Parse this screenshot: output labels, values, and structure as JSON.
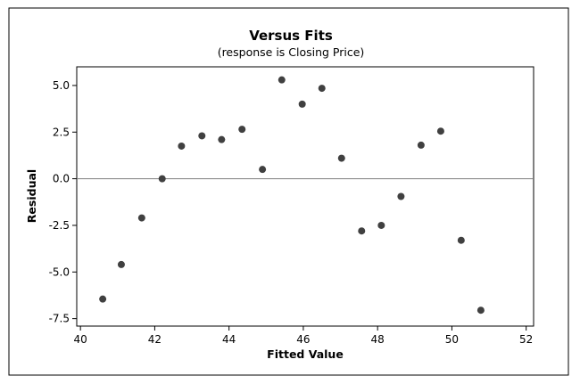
{
  "chart_data": {
    "type": "scatter",
    "title": "Versus Fits",
    "subtitle": "(response is Closing Price)",
    "xlabel": "Fitted Value",
    "ylabel": "Residual",
    "xlim": [
      39.9,
      52.2
    ],
    "ylim": [
      -7.9,
      6.0
    ],
    "xticks": [
      40,
      42,
      44,
      46,
      48,
      50,
      52
    ],
    "yticks": [
      -7.5,
      -5.0,
      -2.5,
      0.0,
      2.5,
      5.0
    ],
    "xtick_labels": [
      "40",
      "42",
      "44",
      "46",
      "48",
      "50",
      "52"
    ],
    "ytick_labels": [
      "-7.5",
      "-5.0",
      "-2.5",
      "0.0",
      "2.5",
      "5.0"
    ],
    "reference_line_y": 0,
    "grid": false,
    "marker_color": "#404040",
    "points": [
      {
        "x": 40.6,
        "y": -6.45
      },
      {
        "x": 41.1,
        "y": -4.6
      },
      {
        "x": 41.65,
        "y": -2.1
      },
      {
        "x": 42.2,
        "y": 0.0
      },
      {
        "x": 42.72,
        "y": 1.75
      },
      {
        "x": 43.27,
        "y": 2.3
      },
      {
        "x": 43.8,
        "y": 2.1
      },
      {
        "x": 44.35,
        "y": 2.65
      },
      {
        "x": 44.9,
        "y": 0.5
      },
      {
        "x": 45.42,
        "y": 5.3
      },
      {
        "x": 45.97,
        "y": 4.0
      },
      {
        "x": 46.5,
        "y": 4.85
      },
      {
        "x": 47.03,
        "y": 1.1
      },
      {
        "x": 47.57,
        "y": -2.8
      },
      {
        "x": 48.1,
        "y": -2.5
      },
      {
        "x": 48.63,
        "y": -0.95
      },
      {
        "x": 49.17,
        "y": 1.8
      },
      {
        "x": 49.7,
        "y": 2.55
      },
      {
        "x": 50.25,
        "y": -3.3
      },
      {
        "x": 50.78,
        "y": -7.05
      }
    ]
  }
}
